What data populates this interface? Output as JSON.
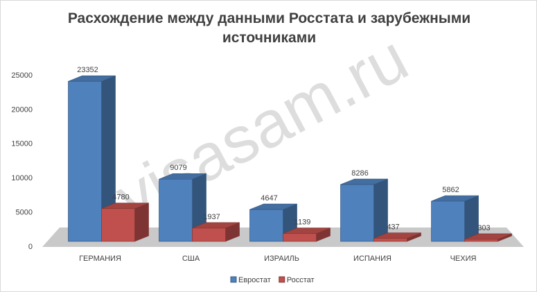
{
  "chart_data": {
    "type": "bar3d",
    "title": "Расхождение между данными Росстата и зарубежными источниками",
    "watermark": "visasam.ru",
    "categories": [
      "ГЕРМАНИЯ",
      "США",
      "ИЗРАИЛЬ",
      "ИСПАНИЯ",
      "ЧЕХИЯ"
    ],
    "series": [
      {
        "name": "Евростат",
        "color": "#4f81bd",
        "values": [
          23352,
          9079,
          4647,
          8286,
          5862
        ]
      },
      {
        "name": "Росстат",
        "color": "#c0504d",
        "values": [
          4780,
          1937,
          1139,
          437,
          303
        ]
      }
    ],
    "ylim": [
      0,
      25000
    ],
    "yticks": [
      0,
      5000,
      10000,
      15000,
      20000,
      25000
    ],
    "legend": "bottom"
  }
}
